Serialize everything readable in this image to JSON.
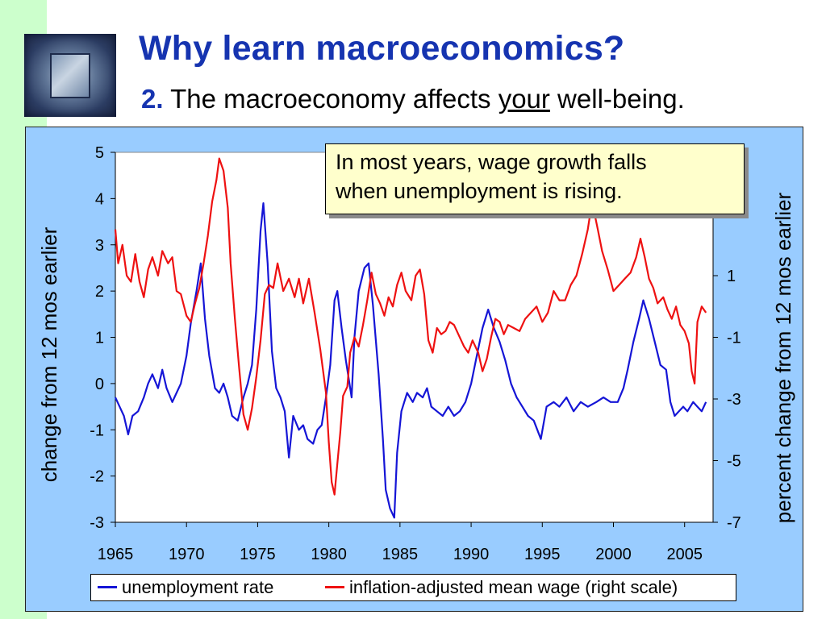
{
  "slide": {
    "title": "Why learn macroeconomics?",
    "subtitle_number": "2.",
    "subtitle_before": "The macroeconomy affects ",
    "subtitle_emph": "your",
    "subtitle_after": " well-being."
  },
  "colors": {
    "sidebar": "#ccffcc",
    "panel": "#99ccff",
    "title": "#1634b0",
    "unemployment": "#1515d6",
    "wage": "#ee1111",
    "callout": "#ffffcc"
  },
  "callout": {
    "line1": "In most years, wage growth falls",
    "line2": "when unemployment is rising."
  },
  "chart_data": {
    "type": "line",
    "ylabel": "change from 12 mos earlier",
    "ylabel_right": "percent change from 12 mos earlier",
    "xlim": [
      1965,
      2007
    ],
    "ylim": [
      -3,
      5
    ],
    "ylim_right": [
      -7,
      5
    ],
    "x_ticks": [
      "1965",
      "1970",
      "1975",
      "1980",
      "1985",
      "1990",
      "1995",
      "2000",
      "2005"
    ],
    "y_ticks": [
      "-3",
      "-2",
      "-1",
      "0",
      "1",
      "2",
      "3",
      "4",
      "5"
    ],
    "y_ticks_right": [
      "-7",
      "-5",
      "-3",
      "-1",
      "1"
    ],
    "grid": false,
    "legend_position": "bottom",
    "series": [
      {
        "name": "unemployment rate",
        "axis": "left",
        "color": "#1515d6",
        "points": [
          [
            1965.0,
            -0.3
          ],
          [
            1965.3,
            -0.5
          ],
          [
            1965.6,
            -0.7
          ],
          [
            1965.9,
            -1.1
          ],
          [
            1966.2,
            -0.7
          ],
          [
            1966.6,
            -0.6
          ],
          [
            1967.0,
            -0.3
          ],
          [
            1967.3,
            0.0
          ],
          [
            1967.6,
            0.2
          ],
          [
            1968.0,
            -0.1
          ],
          [
            1968.3,
            0.3
          ],
          [
            1968.6,
            -0.1
          ],
          [
            1969.0,
            -0.4
          ],
          [
            1969.3,
            -0.2
          ],
          [
            1969.6,
            0.0
          ],
          [
            1970.0,
            0.6
          ],
          [
            1970.3,
            1.3
          ],
          [
            1970.7,
            2.0
          ],
          [
            1971.0,
            2.6
          ],
          [
            1971.3,
            1.4
          ],
          [
            1971.6,
            0.6
          ],
          [
            1972.0,
            -0.1
          ],
          [
            1972.3,
            -0.2
          ],
          [
            1972.6,
            0.0
          ],
          [
            1972.9,
            -0.3
          ],
          [
            1973.2,
            -0.7
          ],
          [
            1973.6,
            -0.8
          ],
          [
            1974.0,
            -0.3
          ],
          [
            1974.3,
            0.0
          ],
          [
            1974.6,
            0.4
          ],
          [
            1974.9,
            1.6
          ],
          [
            1975.2,
            3.3
          ],
          [
            1975.4,
            3.9
          ],
          [
            1975.7,
            2.6
          ],
          [
            1976.0,
            0.7
          ],
          [
            1976.3,
            -0.1
          ],
          [
            1976.6,
            -0.3
          ],
          [
            1976.9,
            -0.6
          ],
          [
            1977.2,
            -1.6
          ],
          [
            1977.5,
            -0.7
          ],
          [
            1977.9,
            -1.0
          ],
          [
            1978.2,
            -0.9
          ],
          [
            1978.5,
            -1.2
          ],
          [
            1978.9,
            -1.3
          ],
          [
            1979.2,
            -1.0
          ],
          [
            1979.5,
            -0.9
          ],
          [
            1979.8,
            -0.3
          ],
          [
            1980.1,
            0.4
          ],
          [
            1980.4,
            1.8
          ],
          [
            1980.6,
            2.0
          ],
          [
            1980.9,
            1.2
          ],
          [
            1981.2,
            0.5
          ],
          [
            1981.6,
            -0.3
          ],
          [
            1981.8,
            1.0
          ],
          [
            1982.1,
            2.0
          ],
          [
            1982.5,
            2.5
          ],
          [
            1982.8,
            2.6
          ],
          [
            1983.1,
            1.7
          ],
          [
            1983.5,
            0.2
          ],
          [
            1983.8,
            -1.2
          ],
          [
            1984.0,
            -2.3
          ],
          [
            1984.3,
            -2.7
          ],
          [
            1984.6,
            -2.9
          ],
          [
            1984.8,
            -1.5
          ],
          [
            1985.1,
            -0.6
          ],
          [
            1985.5,
            -0.2
          ],
          [
            1985.9,
            -0.4
          ],
          [
            1986.2,
            -0.2
          ],
          [
            1986.6,
            -0.3
          ],
          [
            1986.9,
            -0.1
          ],
          [
            1987.2,
            -0.5
          ],
          [
            1987.6,
            -0.6
          ],
          [
            1988.0,
            -0.7
          ],
          [
            1988.4,
            -0.5
          ],
          [
            1988.8,
            -0.7
          ],
          [
            1989.2,
            -0.6
          ],
          [
            1989.6,
            -0.4
          ],
          [
            1990.0,
            0.0
          ],
          [
            1990.4,
            0.6
          ],
          [
            1990.8,
            1.2
          ],
          [
            1991.2,
            1.6
          ],
          [
            1991.6,
            1.2
          ],
          [
            1992.0,
            0.9
          ],
          [
            1992.4,
            0.5
          ],
          [
            1992.8,
            0.0
          ],
          [
            1993.2,
            -0.3
          ],
          [
            1993.6,
            -0.5
          ],
          [
            1994.0,
            -0.7
          ],
          [
            1994.4,
            -0.8
          ],
          [
            1994.9,
            -1.2
          ],
          [
            1995.3,
            -0.5
          ],
          [
            1995.8,
            -0.4
          ],
          [
            1996.2,
            -0.5
          ],
          [
            1996.7,
            -0.3
          ],
          [
            1997.2,
            -0.6
          ],
          [
            1997.7,
            -0.4
          ],
          [
            1998.2,
            -0.5
          ],
          [
            1998.8,
            -0.4
          ],
          [
            1999.3,
            -0.3
          ],
          [
            1999.8,
            -0.4
          ],
          [
            2000.3,
            -0.4
          ],
          [
            2000.7,
            -0.1
          ],
          [
            2001.0,
            0.3
          ],
          [
            2001.4,
            0.9
          ],
          [
            2001.8,
            1.4
          ],
          [
            2002.1,
            1.8
          ],
          [
            2002.5,
            1.4
          ],
          [
            2002.9,
            0.9
          ],
          [
            2003.3,
            0.4
          ],
          [
            2003.7,
            0.3
          ],
          [
            2004.0,
            -0.4
          ],
          [
            2004.3,
            -0.7
          ],
          [
            2004.6,
            -0.6
          ],
          [
            2004.9,
            -0.5
          ],
          [
            2005.2,
            -0.6
          ],
          [
            2005.6,
            -0.4
          ],
          [
            2005.9,
            -0.5
          ],
          [
            2006.2,
            -0.6
          ],
          [
            2006.5,
            -0.4
          ]
        ]
      },
      {
        "name": "inflation-adjusted mean wage (right scale)",
        "axis": "right",
        "color": "#ee1111",
        "points": [
          [
            1965.0,
            2.5
          ],
          [
            1965.2,
            1.4
          ],
          [
            1965.5,
            2.0
          ],
          [
            1965.8,
            1.0
          ],
          [
            1966.1,
            0.8
          ],
          [
            1966.4,
            1.7
          ],
          [
            1966.7,
            0.8
          ],
          [
            1967.0,
            0.3
          ],
          [
            1967.3,
            1.2
          ],
          [
            1967.6,
            1.6
          ],
          [
            1968.0,
            1.0
          ],
          [
            1968.3,
            1.8
          ],
          [
            1968.7,
            1.4
          ],
          [
            1969.0,
            1.6
          ],
          [
            1969.3,
            0.5
          ],
          [
            1969.6,
            0.4
          ],
          [
            1970.0,
            -0.3
          ],
          [
            1970.3,
            -0.5
          ],
          [
            1970.6,
            0.1
          ],
          [
            1970.9,
            0.6
          ],
          [
            1971.2,
            1.4
          ],
          [
            1971.5,
            2.3
          ],
          [
            1971.8,
            3.4
          ],
          [
            1972.1,
            4.1
          ],
          [
            1972.3,
            4.8
          ],
          [
            1972.6,
            4.4
          ],
          [
            1972.9,
            3.2
          ],
          [
            1973.1,
            1.4
          ],
          [
            1973.4,
            -0.4
          ],
          [
            1973.7,
            -2.0
          ],
          [
            1974.0,
            -3.5
          ],
          [
            1974.3,
            -4.0
          ],
          [
            1974.6,
            -3.3
          ],
          [
            1974.9,
            -2.3
          ],
          [
            1975.2,
            -1.1
          ],
          [
            1975.5,
            0.4
          ],
          [
            1975.8,
            0.7
          ],
          [
            1976.1,
            0.6
          ],
          [
            1976.4,
            1.4
          ],
          [
            1976.8,
            0.5
          ],
          [
            1977.2,
            0.9
          ],
          [
            1977.6,
            0.3
          ],
          [
            1977.9,
            0.9
          ],
          [
            1978.2,
            0.1
          ],
          [
            1978.6,
            0.9
          ],
          [
            1979.0,
            -0.2
          ],
          [
            1979.4,
            -1.4
          ],
          [
            1979.8,
            -2.8
          ],
          [
            1980.0,
            -4.4
          ],
          [
            1980.2,
            -5.7
          ],
          [
            1980.4,
            -6.1
          ],
          [
            1980.6,
            -5.1
          ],
          [
            1980.8,
            -4.1
          ],
          [
            1981.0,
            -2.9
          ],
          [
            1981.3,
            -2.6
          ],
          [
            1981.5,
            -1.5
          ],
          [
            1981.8,
            -1.0
          ],
          [
            1982.1,
            -1.3
          ],
          [
            1982.4,
            -0.6
          ],
          [
            1982.7,
            0.2
          ],
          [
            1983.0,
            1.1
          ],
          [
            1983.3,
            0.4
          ],
          [
            1983.6,
            0.1
          ],
          [
            1983.9,
            -0.3
          ],
          [
            1984.2,
            0.3
          ],
          [
            1984.5,
            0.0
          ],
          [
            1984.8,
            0.7
          ],
          [
            1985.1,
            1.1
          ],
          [
            1985.4,
            0.5
          ],
          [
            1985.8,
            0.2
          ],
          [
            1986.1,
            1.0
          ],
          [
            1986.4,
            1.2
          ],
          [
            1986.7,
            0.4
          ],
          [
            1987.0,
            -1.1
          ],
          [
            1987.3,
            -1.5
          ],
          [
            1987.6,
            -0.7
          ],
          [
            1987.9,
            -0.9
          ],
          [
            1988.2,
            -0.8
          ],
          [
            1988.5,
            -0.5
          ],
          [
            1988.8,
            -0.6
          ],
          [
            1989.1,
            -0.9
          ],
          [
            1989.5,
            -1.3
          ],
          [
            1989.8,
            -1.5
          ],
          [
            1990.1,
            -1.1
          ],
          [
            1990.5,
            -1.5
          ],
          [
            1990.8,
            -2.1
          ],
          [
            1991.1,
            -1.7
          ],
          [
            1991.4,
            -1.0
          ],
          [
            1991.7,
            -0.4
          ],
          [
            1992.0,
            -0.5
          ],
          [
            1992.3,
            -0.9
          ],
          [
            1992.6,
            -0.6
          ],
          [
            1993.0,
            -0.7
          ],
          [
            1993.4,
            -0.8
          ],
          [
            1993.8,
            -0.4
          ],
          [
            1994.2,
            -0.2
          ],
          [
            1994.6,
            0.0
          ],
          [
            1995.0,
            -0.5
          ],
          [
            1995.4,
            -0.2
          ],
          [
            1995.8,
            0.5
          ],
          [
            1996.2,
            0.2
          ],
          [
            1996.6,
            0.2
          ],
          [
            1997.0,
            0.7
          ],
          [
            1997.4,
            1.0
          ],
          [
            1997.8,
            1.7
          ],
          [
            1998.2,
            2.5
          ],
          [
            1998.5,
            3.4
          ],
          [
            1998.9,
            2.5
          ],
          [
            1999.2,
            1.8
          ],
          [
            1999.6,
            1.2
          ],
          [
            2000.0,
            0.5
          ],
          [
            2000.4,
            0.7
          ],
          [
            2000.8,
            0.9
          ],
          [
            2001.2,
            1.1
          ],
          [
            2001.6,
            1.6
          ],
          [
            2001.9,
            2.2
          ],
          [
            2002.2,
            1.6
          ],
          [
            2002.5,
            0.9
          ],
          [
            2002.8,
            0.6
          ],
          [
            2003.1,
            0.1
          ],
          [
            2003.5,
            0.3
          ],
          [
            2003.8,
            -0.1
          ],
          [
            2004.1,
            -0.4
          ],
          [
            2004.4,
            0.0
          ],
          [
            2004.7,
            -0.6
          ],
          [
            2005.0,
            -0.8
          ],
          [
            2005.3,
            -1.2
          ],
          [
            2005.5,
            -2.1
          ],
          [
            2005.7,
            -2.5
          ],
          [
            2005.9,
            -0.5
          ],
          [
            2006.2,
            0.0
          ],
          [
            2006.5,
            -0.2
          ]
        ]
      }
    ]
  }
}
